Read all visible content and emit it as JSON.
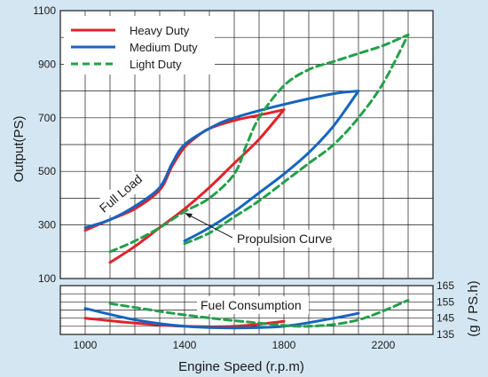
{
  "chart_data": [
    {
      "type": "line",
      "title": "",
      "xlabel": "Engine Speed (r.p.m)",
      "ylabel": "Output(PS)",
      "xlim": [
        900,
        2400
      ],
      "ylim": [
        100,
        1100
      ],
      "x_ticks": [
        1000,
        1400,
        1800,
        2200
      ],
      "y_ticks": [
        100,
        300,
        500,
        700,
        900,
        1100
      ],
      "grid": true,
      "legend_position": "top-left",
      "annotations": [
        "Full Load",
        "Propulsion Curve"
      ],
      "series": [
        {
          "name": "Heavy Duty",
          "color": "#e0222a",
          "style": "solid",
          "curves": {
            "full_load": {
              "x": [
                1000,
                1100,
                1200,
                1300,
                1350,
                1400,
                1450,
                1500,
                1600,
                1700,
                1800
              ],
              "y": [
                280,
                320,
                360,
                430,
                520,
                590,
                630,
                660,
                690,
                710,
                730
              ]
            },
            "propulsion": {
              "x": [
                1100,
                1200,
                1300,
                1400,
                1500,
                1600,
                1700,
                1800
              ],
              "y": [
                160,
                220,
                290,
                360,
                440,
                530,
                620,
                730
              ]
            }
          }
        },
        {
          "name": "Medium Duty",
          "color": "#1565c0",
          "style": "solid",
          "curves": {
            "full_load": {
              "x": [
                1000,
                1100,
                1200,
                1300,
                1350,
                1400,
                1500,
                1600,
                1800,
                2000,
                2100
              ],
              "y": [
                290,
                320,
                370,
                440,
                530,
                600,
                660,
                700,
                750,
                790,
                800
              ]
            },
            "propulsion": {
              "x": [
                1400,
                1500,
                1600,
                1700,
                1800,
                1900,
                2000,
                2100
              ],
              "y": [
                240,
                290,
                350,
                420,
                490,
                570,
                670,
                800
              ]
            }
          }
        },
        {
          "name": "Light Duty",
          "color": "#22a04a",
          "style": "dashed",
          "curves": {
            "full_load": {
              "x": [
                1100,
                1200,
                1300,
                1400,
                1500,
                1600,
                1650,
                1700,
                1800,
                1900,
                2000,
                2100,
                2200,
                2300
              ],
              "y": [
                200,
                240,
                290,
                350,
                400,
                490,
                600,
                700,
                820,
                880,
                910,
                940,
                970,
                1010
              ]
            },
            "propulsion": {
              "x": [
                1400,
                1500,
                1600,
                1700,
                1800,
                1900,
                2000,
                2100,
                2200,
                2300
              ],
              "y": [
                230,
                270,
                330,
                390,
                460,
                530,
                600,
                700,
                830,
                1010
              ]
            }
          }
        }
      ]
    },
    {
      "type": "line",
      "title": "",
      "xlabel": "Engine Speed (r.p.m)",
      "ylabel": "(g / PS.h)",
      "xlim": [
        900,
        2400
      ],
      "ylim": [
        135,
        165
      ],
      "y_ticks": [
        135,
        145,
        155,
        165
      ],
      "annotations": [
        "Fuel Consumption"
      ],
      "series": [
        {
          "name": "Heavy Duty",
          "color": "#e0222a",
          "style": "solid",
          "x": [
            1000,
            1200,
            1400,
            1600,
            1800
          ],
          "y": [
            145,
            142,
            140,
            140,
            143
          ]
        },
        {
          "name": "Medium Duty",
          "color": "#1565c0",
          "style": "solid",
          "x": [
            1000,
            1200,
            1400,
            1600,
            1800,
            2000,
            2100
          ],
          "y": [
            151,
            144,
            140,
            139,
            140,
            145,
            148
          ]
        },
        {
          "name": "Light Duty",
          "color": "#22a04a",
          "style": "dashed",
          "x": [
            1100,
            1400,
            1700,
            1900,
            2100,
            2300
          ],
          "y": [
            154,
            147,
            142,
            140,
            144,
            156
          ]
        }
      ]
    }
  ]
}
